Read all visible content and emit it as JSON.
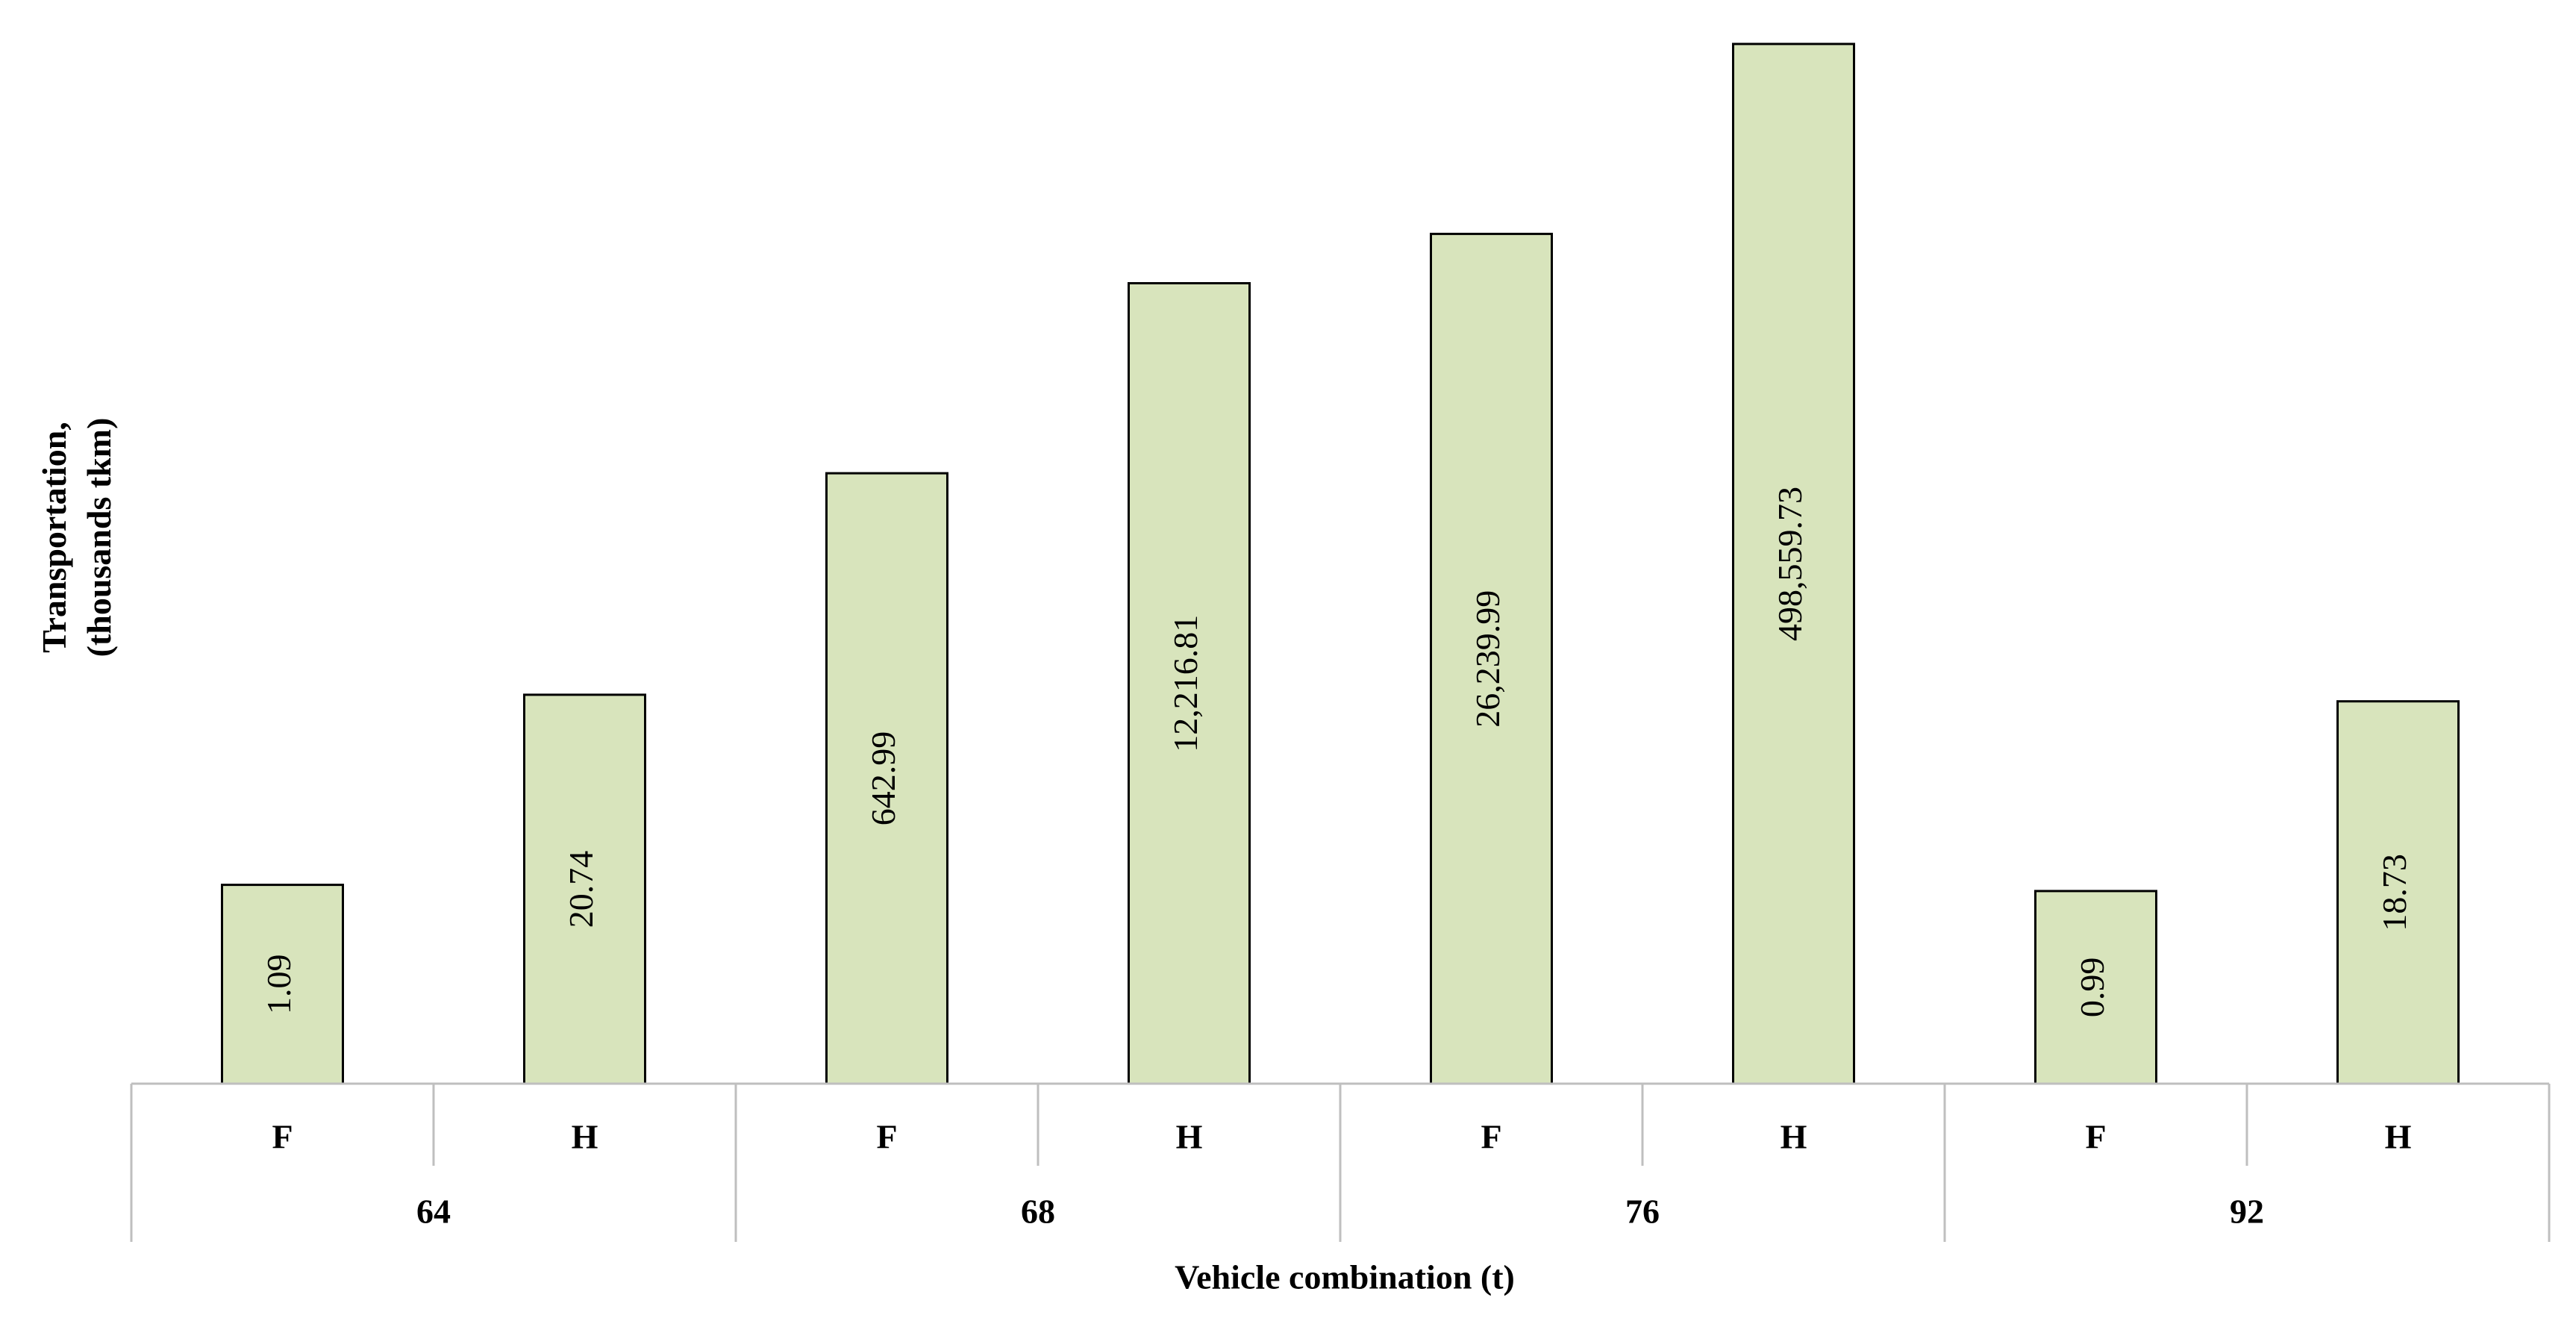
{
  "chart_data": {
    "type": "bar",
    "scale": "log",
    "categories": [
      {
        "group": "64",
        "sub": "F"
      },
      {
        "group": "64",
        "sub": "H"
      },
      {
        "group": "68",
        "sub": "F"
      },
      {
        "group": "68",
        "sub": "H"
      },
      {
        "group": "76",
        "sub": "F"
      },
      {
        "group": "76",
        "sub": "H"
      },
      {
        "group": "92",
        "sub": "F"
      },
      {
        "group": "92",
        "sub": "H"
      }
    ],
    "groups": [
      "64",
      "68",
      "76",
      "92"
    ],
    "values": [
      1.09,
      20.74,
      642.99,
      12216.81,
      26239.99,
      498559.73,
      0.99,
      18.73
    ],
    "value_labels": [
      "1.09",
      "20.74",
      "642.99",
      "12,216.81",
      "26,239.99",
      "498,559.73",
      "0.99",
      "18.73"
    ],
    "xlabel": "Vehicle combination (t)",
    "ylabel_lines": [
      "Transportation,",
      "(thousands tkm)"
    ],
    "bar_color": "#d8e4bc",
    "bar_outline_color": "#000000",
    "axis_color": "#bfbfbf",
    "grid": false,
    "legend": false
  }
}
